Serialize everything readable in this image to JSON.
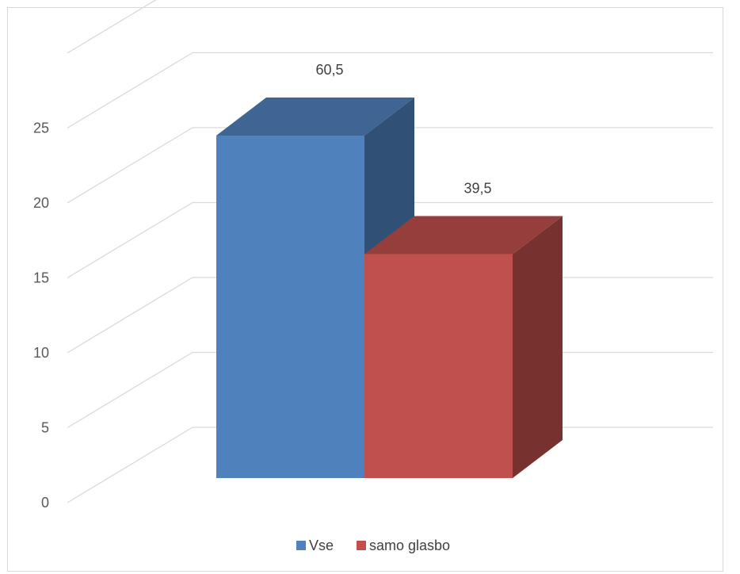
{
  "chart_data": {
    "type": "bar",
    "style": "3d-column",
    "categories": [
      ""
    ],
    "series": [
      {
        "name": "Vse",
        "values": [
          23.7
        ],
        "data_label": "60,5",
        "color": "#4f81bd"
      },
      {
        "name": "samo glasbo",
        "values": [
          15.5
        ],
        "data_label": "39,5",
        "color": "#c0504d"
      }
    ],
    "y_ticks": [
      "0",
      "5",
      "10",
      "15",
      "20",
      "25"
    ],
    "ylim": [
      0,
      30
    ],
    "grid": true,
    "legend_position": "bottom"
  }
}
